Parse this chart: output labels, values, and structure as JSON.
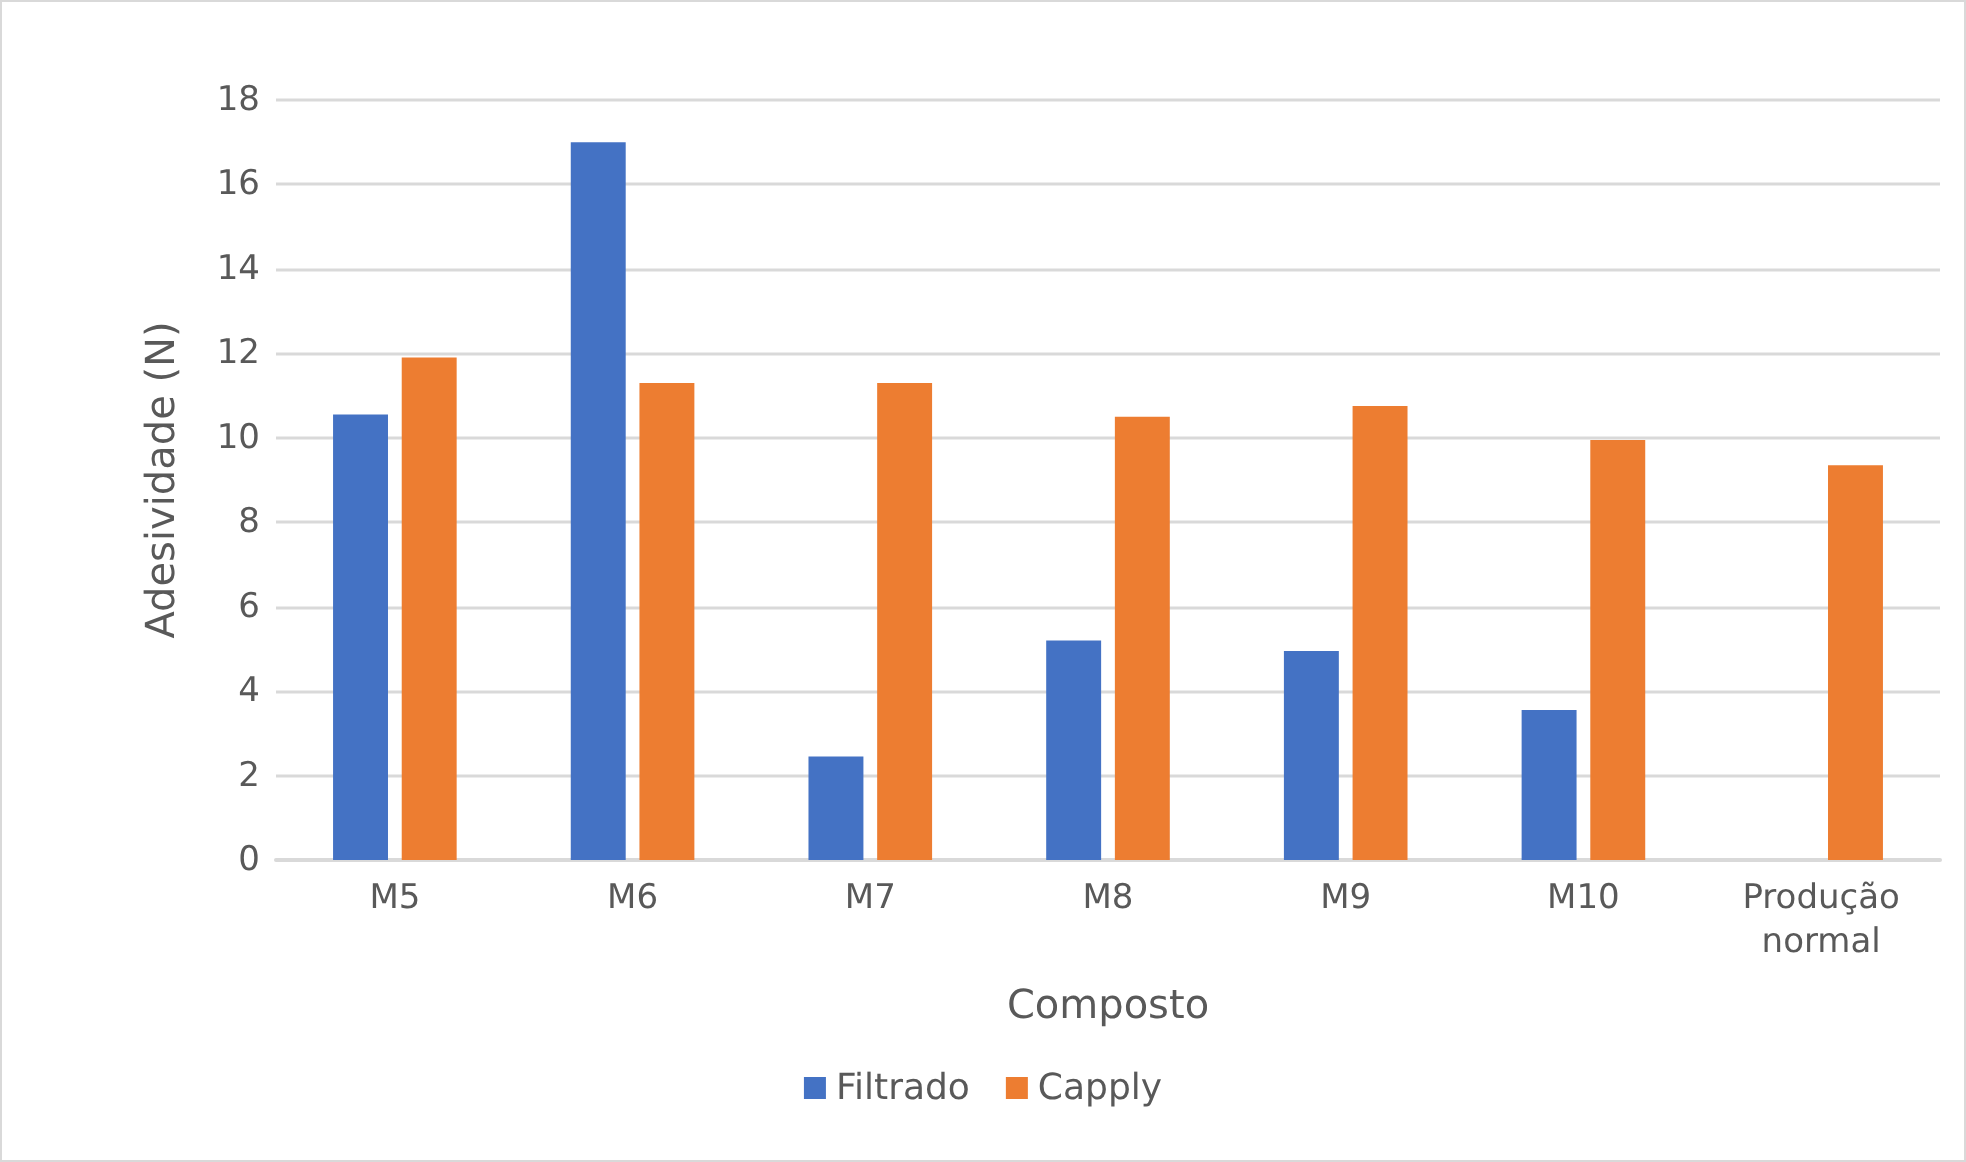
{
  "chart_data": {
    "type": "bar",
    "xlabel": "Composto",
    "ylabel": "Adesividade (N)",
    "categories": [
      "M5",
      "M6",
      "M7",
      "M8",
      "M9",
      "M10",
      "Produção\nnormal"
    ],
    "series": [
      {
        "name": "Filtrado",
        "color": "#4472c4",
        "values": [
          10.55,
          17.0,
          2.45,
          5.2,
          4.95,
          3.55,
          null
        ]
      },
      {
        "name": "Capply",
        "color": "#ed7d31",
        "values": [
          11.9,
          11.3,
          11.3,
          10.5,
          10.75,
          9.95,
          9.35
        ]
      }
    ],
    "ylim": [
      0,
      18
    ],
    "yticks": [
      0,
      2,
      4,
      6,
      8,
      10,
      12,
      14,
      16,
      18
    ],
    "grid": "y",
    "legend": "bottom"
  }
}
